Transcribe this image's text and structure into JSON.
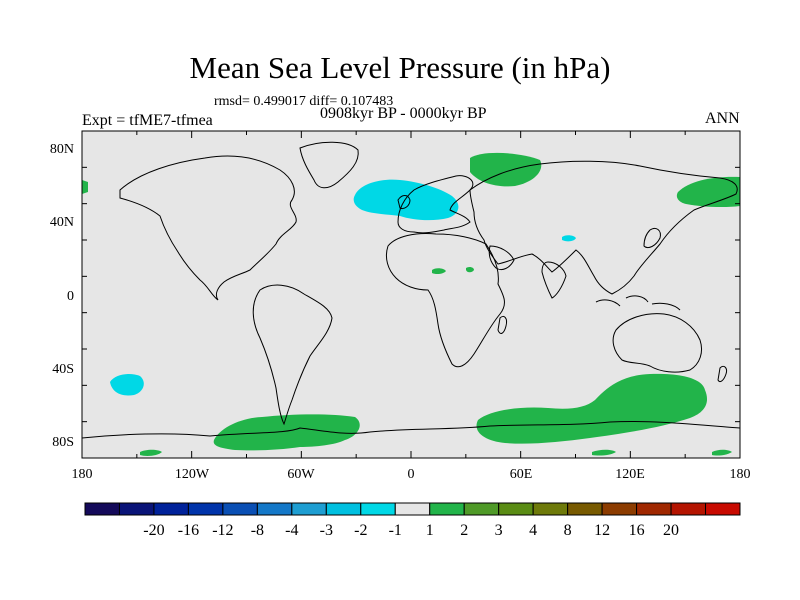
{
  "map": {
    "title": "Mean Sea Level Pressure (in hPa)",
    "subtitle": "rmsd= 0.499017  diff= 0.107483",
    "left_string": "Expt = tfME7-tfmea",
    "center_string": "0908kyr BP - 0000kyr BP",
    "right_string": "ANN",
    "lon_labels": [
      "180",
      "120W",
      "60W",
      "0",
      "60E",
      "120E",
      "180"
    ],
    "lat_labels": [
      "80N",
      "40N",
      "0",
      "40S",
      "80S"
    ],
    "colors": {
      "land_bg": "#e6e6e6",
      "positive_1_2": "#22b44a",
      "negative_2_1": "#00d8e6",
      "coast": "#000000"
    }
  },
  "colorbar": {
    "colors": [
      "#140a5a",
      "#0a1478",
      "#00229a",
      "#0034aa",
      "#0a4fb4",
      "#1478c8",
      "#1e9ed2",
      "#00c0e0",
      "#00d8e6",
      "#e6e6e6",
      "#22b44a",
      "#4f9a28",
      "#5a8c14",
      "#6e7a0a",
      "#785a00",
      "#8c3c00",
      "#a02800",
      "#b41400",
      "#c80a00"
    ],
    "labels": [
      "-20",
      "-16",
      "-12",
      "-8",
      "-4",
      "-3",
      "-2",
      "-1",
      "1",
      "2",
      "3",
      "4",
      "8",
      "12",
      "16",
      "20"
    ]
  }
}
